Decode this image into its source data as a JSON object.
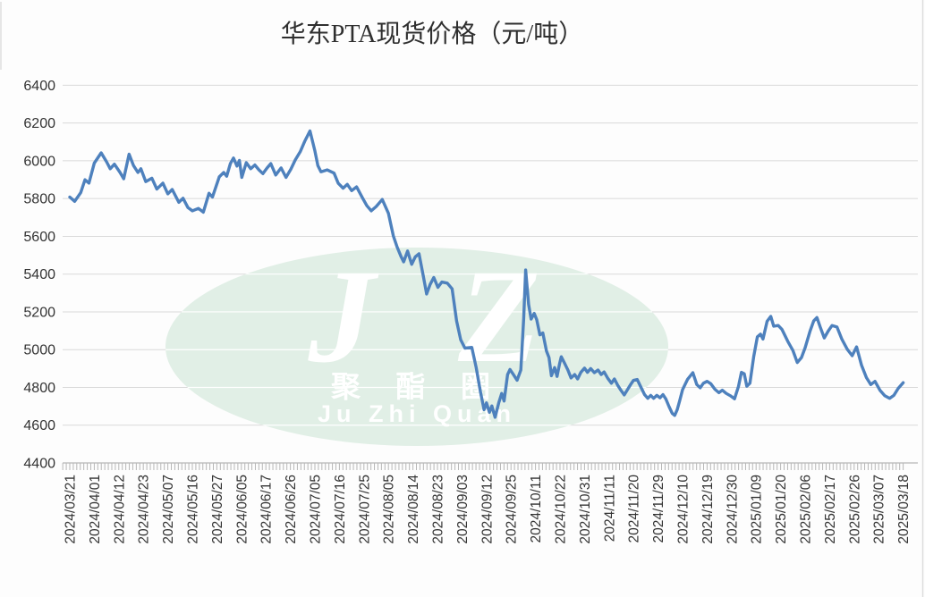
{
  "chart_data": {
    "type": "line",
    "title": "华东PTA现货价格（元/吨）",
    "xlabel": "",
    "ylabel": "",
    "ylim": [
      4400,
      6400
    ],
    "yticks": [
      4400,
      4600,
      4800,
      5000,
      5200,
      5400,
      5600,
      5800,
      6000,
      6200,
      6400
    ],
    "grid": true,
    "legend": "none",
    "minor_ticks_per_category": 7,
    "x_unit": "category_index (fractional positions = trading days between labeled dates)",
    "categories": [
      "2024/03/21",
      "2024/04/01",
      "2024/04/12",
      "2024/04/23",
      "2024/05/07",
      "2024/05/16",
      "2024/05/27",
      "2024/06/05",
      "2024/06/17",
      "2024/06/26",
      "2024/07/05",
      "2024/07/16",
      "2024/07/25",
      "2024/08/05",
      "2024/08/14",
      "2024/08/23",
      "2024/09/03",
      "2024/09/12",
      "2024/09/25",
      "2024/10/11",
      "2024/10/22",
      "2024/10/31",
      "2024/11/11",
      "2024/11/20",
      "2024/11/29",
      "2024/12/10",
      "2024/12/19",
      "2024/12/30",
      "2025/01/09",
      "2025/01/20",
      "2025/02/06",
      "2025/02/17",
      "2025/02/26",
      "2025/03/07",
      "2025/03/18"
    ],
    "series": [
      {
        "name": "华东PTA现货价格",
        "color": "#4e81bd",
        "points": [
          [
            0,
            5808
          ],
          [
            0.2,
            5785
          ],
          [
            0.45,
            5832
          ],
          [
            0.62,
            5900
          ],
          [
            0.78,
            5882
          ],
          [
            1,
            5988
          ],
          [
            1.28,
            6042
          ],
          [
            1.5,
            5995
          ],
          [
            1.65,
            5958
          ],
          [
            1.82,
            5982
          ],
          [
            2.05,
            5938
          ],
          [
            2.2,
            5905
          ],
          [
            2.42,
            6035
          ],
          [
            2.6,
            5975
          ],
          [
            2.78,
            5938
          ],
          [
            2.9,
            5958
          ],
          [
            3.1,
            5890
          ],
          [
            3.35,
            5908
          ],
          [
            3.55,
            5850
          ],
          [
            3.8,
            5882
          ],
          [
            4,
            5825
          ],
          [
            4.18,
            5848
          ],
          [
            4.45,
            5780
          ],
          [
            4.62,
            5802
          ],
          [
            4.82,
            5752
          ],
          [
            5,
            5735
          ],
          [
            5.25,
            5748
          ],
          [
            5.45,
            5728
          ],
          [
            5.68,
            5828
          ],
          [
            5.82,
            5808
          ],
          [
            6.1,
            5915
          ],
          [
            6.28,
            5938
          ],
          [
            6.4,
            5918
          ],
          [
            6.55,
            5985
          ],
          [
            6.68,
            6015
          ],
          [
            6.82,
            5972
          ],
          [
            6.92,
            6002
          ],
          [
            7.02,
            5912
          ],
          [
            7.2,
            5990
          ],
          [
            7.38,
            5958
          ],
          [
            7.55,
            5978
          ],
          [
            7.72,
            5952
          ],
          [
            7.88,
            5932
          ],
          [
            8.05,
            5962
          ],
          [
            8.2,
            5985
          ],
          [
            8.4,
            5925
          ],
          [
            8.62,
            5962
          ],
          [
            8.82,
            5912
          ],
          [
            9.02,
            5955
          ],
          [
            9.2,
            6005
          ],
          [
            9.4,
            6048
          ],
          [
            9.58,
            6102
          ],
          [
            9.8,
            6158
          ],
          [
            10,
            6052
          ],
          [
            10.12,
            5975
          ],
          [
            10.25,
            5942
          ],
          [
            10.5,
            5952
          ],
          [
            10.78,
            5935
          ],
          [
            10.95,
            5882
          ],
          [
            11.15,
            5855
          ],
          [
            11.32,
            5875
          ],
          [
            11.5,
            5842
          ],
          [
            11.7,
            5862
          ],
          [
            11.95,
            5802
          ],
          [
            12.12,
            5762
          ],
          [
            12.3,
            5735
          ],
          [
            12.5,
            5758
          ],
          [
            12.75,
            5795
          ],
          [
            13,
            5722
          ],
          [
            13.2,
            5602
          ],
          [
            13.35,
            5545
          ],
          [
            13.52,
            5492
          ],
          [
            13.62,
            5465
          ],
          [
            13.78,
            5522
          ],
          [
            13.95,
            5452
          ],
          [
            14.1,
            5492
          ],
          [
            14.25,
            5508
          ],
          [
            14.42,
            5392
          ],
          [
            14.56,
            5295
          ],
          [
            14.7,
            5345
          ],
          [
            14.85,
            5382
          ],
          [
            15.02,
            5330
          ],
          [
            15.18,
            5358
          ],
          [
            15.4,
            5352
          ],
          [
            15.6,
            5322
          ],
          [
            15.78,
            5152
          ],
          [
            15.95,
            5052
          ],
          [
            16.12,
            5008
          ],
          [
            16.4,
            5012
          ],
          [
            16.58,
            4905
          ],
          [
            16.75,
            4778
          ],
          [
            16.9,
            4682
          ],
          [
            17,
            4718
          ],
          [
            17.12,
            4668
          ],
          [
            17.22,
            4702
          ],
          [
            17.35,
            4642
          ],
          [
            17.5,
            4718
          ],
          [
            17.62,
            4768
          ],
          [
            17.72,
            4728
          ],
          [
            17.86,
            4868
          ],
          [
            17.96,
            4895
          ],
          [
            18.1,
            4868
          ],
          [
            18.25,
            4838
          ],
          [
            18.4,
            4892
          ],
          [
            18.52,
            5165
          ],
          [
            18.6,
            5422
          ],
          [
            18.72,
            5240
          ],
          [
            18.82,
            5162
          ],
          [
            18.95,
            5192
          ],
          [
            19.05,
            5158
          ],
          [
            19.18,
            5078
          ],
          [
            19.3,
            5088
          ],
          [
            19.45,
            4992
          ],
          [
            19.55,
            4958
          ],
          [
            19.65,
            4862
          ],
          [
            19.78,
            4905
          ],
          [
            19.88,
            4858
          ],
          [
            19.98,
            4925
          ],
          [
            20.05,
            4962
          ],
          [
            20.18,
            4930
          ],
          [
            20.32,
            4892
          ],
          [
            20.45,
            4850
          ],
          [
            20.6,
            4868
          ],
          [
            20.72,
            4845
          ],
          [
            20.85,
            4880
          ],
          [
            21,
            4902
          ],
          [
            21.12,
            4880
          ],
          [
            21.25,
            4900
          ],
          [
            21.4,
            4878
          ],
          [
            21.55,
            4892
          ],
          [
            21.68,
            4868
          ],
          [
            21.8,
            4882
          ],
          [
            21.95,
            4848
          ],
          [
            22.1,
            4822
          ],
          [
            22.22,
            4845
          ],
          [
            22.35,
            4812
          ],
          [
            22.5,
            4782
          ],
          [
            22.62,
            4760
          ],
          [
            22.75,
            4788
          ],
          [
            22.88,
            4815
          ],
          [
            23,
            4838
          ],
          [
            23.15,
            4842
          ],
          [
            23.3,
            4802
          ],
          [
            23.45,
            4762
          ],
          [
            23.58,
            4742
          ],
          [
            23.7,
            4758
          ],
          [
            23.82,
            4742
          ],
          [
            23.95,
            4758
          ],
          [
            24.08,
            4745
          ],
          [
            24.2,
            4762
          ],
          [
            24.32,
            4738
          ],
          [
            24.45,
            4698
          ],
          [
            24.58,
            4662
          ],
          [
            24.68,
            4652
          ],
          [
            24.78,
            4682
          ],
          [
            24.88,
            4728
          ],
          [
            25,
            4788
          ],
          [
            25.2,
            4842
          ],
          [
            25.42,
            4878
          ],
          [
            25.58,
            4815
          ],
          [
            25.72,
            4798
          ],
          [
            25.85,
            4822
          ],
          [
            26,
            4832
          ],
          [
            26.15,
            4820
          ],
          [
            26.32,
            4790
          ],
          [
            26.48,
            4772
          ],
          [
            26.62,
            4785
          ],
          [
            26.78,
            4768
          ],
          [
            26.95,
            4756
          ],
          [
            27.12,
            4740
          ],
          [
            27.28,
            4805
          ],
          [
            27.4,
            4880
          ],
          [
            27.52,
            4872
          ],
          [
            27.62,
            4806
          ],
          [
            27.75,
            4822
          ],
          [
            27.9,
            4962
          ],
          [
            28.05,
            5068
          ],
          [
            28.18,
            5082
          ],
          [
            28.28,
            5056
          ],
          [
            28.45,
            5150
          ],
          [
            28.6,
            5176
          ],
          [
            28.72,
            5124
          ],
          [
            28.9,
            5128
          ],
          [
            29.05,
            5108
          ],
          [
            29.3,
            5042
          ],
          [
            29.5,
            4996
          ],
          [
            29.68,
            4932
          ],
          [
            29.85,
            4958
          ],
          [
            30,
            5010
          ],
          [
            30.2,
            5098
          ],
          [
            30.35,
            5152
          ],
          [
            30.48,
            5170
          ],
          [
            30.62,
            5118
          ],
          [
            30.78,
            5062
          ],
          [
            30.95,
            5100
          ],
          [
            31.1,
            5128
          ],
          [
            31.3,
            5120
          ],
          [
            31.5,
            5055
          ],
          [
            31.72,
            5002
          ],
          [
            31.92,
            4968
          ],
          [
            32.1,
            5015
          ],
          [
            32.3,
            4918
          ],
          [
            32.5,
            4852
          ],
          [
            32.68,
            4815
          ],
          [
            32.85,
            4832
          ],
          [
            33.05,
            4785
          ],
          [
            33.25,
            4756
          ],
          [
            33.45,
            4742
          ],
          [
            33.62,
            4758
          ],
          [
            33.8,
            4795
          ],
          [
            34,
            4825
          ]
        ]
      }
    ]
  },
  "watermark": {
    "letter_j": "J",
    "letter_z": "Z",
    "cn_text": "聚 酯 圈",
    "en_text": "Ju Zhi Quan",
    "ellipse_color": "#e1efe6",
    "inner_grid_color": "#ffffff",
    "text_color": "#ffffff"
  },
  "colors": {
    "line": "#4e81bd",
    "grid": "#d9d9d9",
    "axis": "#b7b7b7",
    "label": "#333333",
    "title": "#2f2f2f",
    "background": "#fdfdfd",
    "frame_border": "#dcdcdc"
  }
}
